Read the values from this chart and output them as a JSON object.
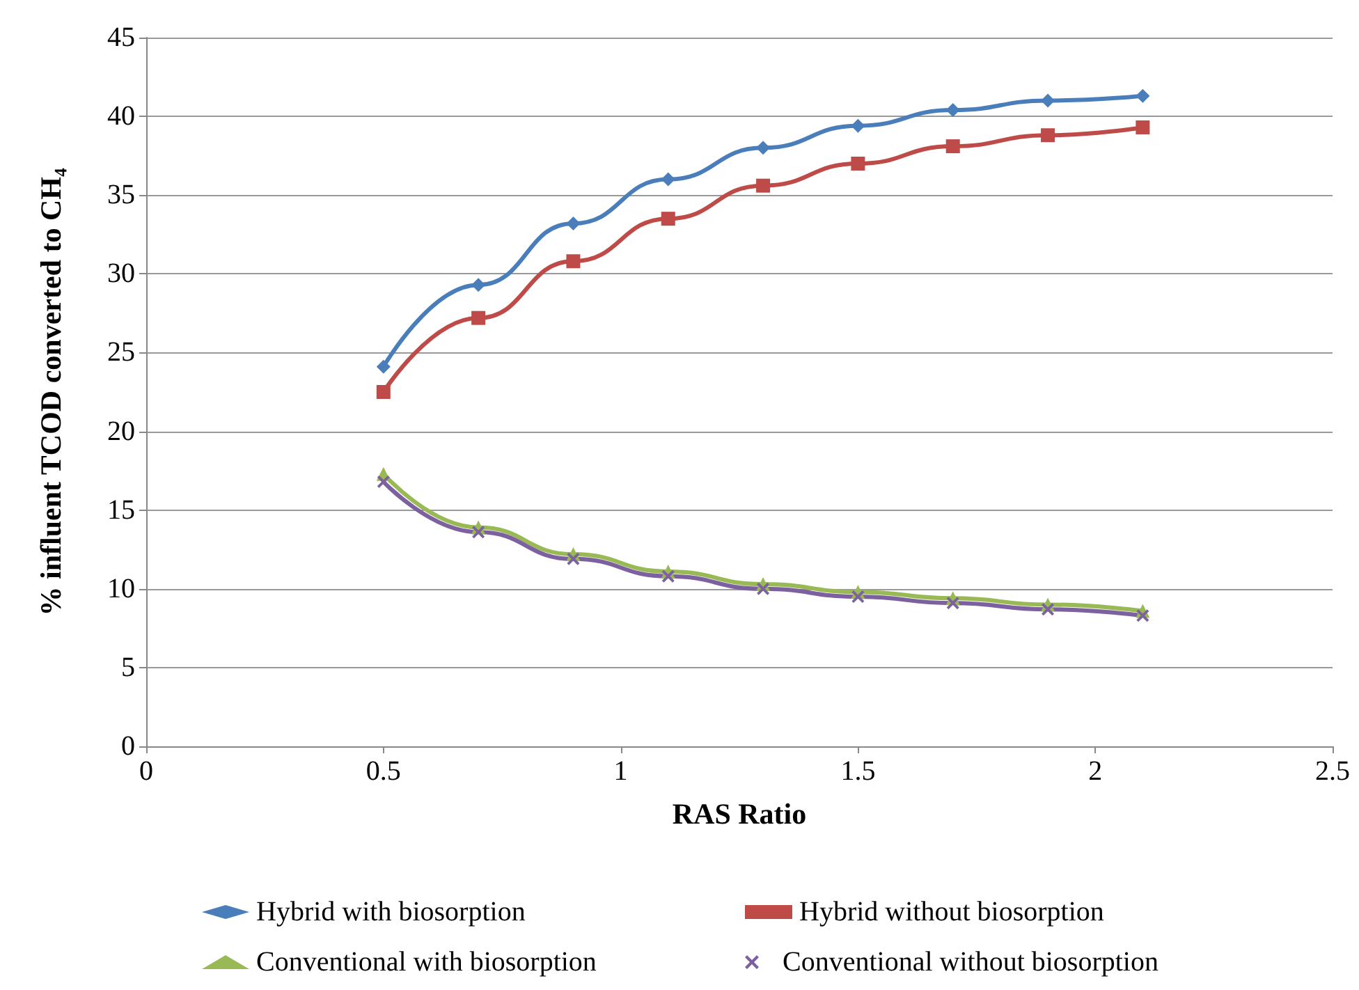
{
  "chart_data": {
    "type": "line",
    "xlabel": "RAS Ratio",
    "ylabel": "% influent TCOD converted to CH₄",
    "x": [
      0.5,
      0.7,
      0.9,
      1.1,
      1.3,
      1.5,
      1.7,
      1.9,
      2.1
    ],
    "series": [
      {
        "name": "Hybrid with biosorption",
        "color": "#4a7ebb",
        "marker": "diamond",
        "values": [
          24.1,
          29.3,
          33.2,
          36.0,
          38.0,
          39.4,
          40.4,
          41.0,
          41.3
        ]
      },
      {
        "name": "Hybrid without biosorption",
        "color": "#be4b48",
        "marker": "square",
        "values": [
          22.5,
          27.2,
          30.8,
          33.5,
          35.6,
          37.0,
          38.1,
          38.8,
          39.3
        ]
      },
      {
        "name": "Conventional with biosorption",
        "color": "#98b954",
        "marker": "triangle",
        "values": [
          17.3,
          13.9,
          12.2,
          11.1,
          10.3,
          9.8,
          9.4,
          9.0,
          8.6
        ]
      },
      {
        "name": "Conventional without biosorption",
        "color": "#7d60a0",
        "marker": "cross",
        "values": [
          16.8,
          13.6,
          11.9,
          10.8,
          10.0,
          9.5,
          9.1,
          8.7,
          8.3
        ]
      }
    ],
    "xlim": [
      0,
      2.5
    ],
    "xticks": [
      0,
      0.5,
      1,
      1.5,
      2,
      2.5
    ],
    "ylim": [
      0,
      45
    ],
    "yticks": [
      0,
      5,
      10,
      15,
      20,
      25,
      30,
      35,
      40,
      45
    ],
    "grid": "y",
    "legend": "bottom",
    "line_style": "solid"
  }
}
